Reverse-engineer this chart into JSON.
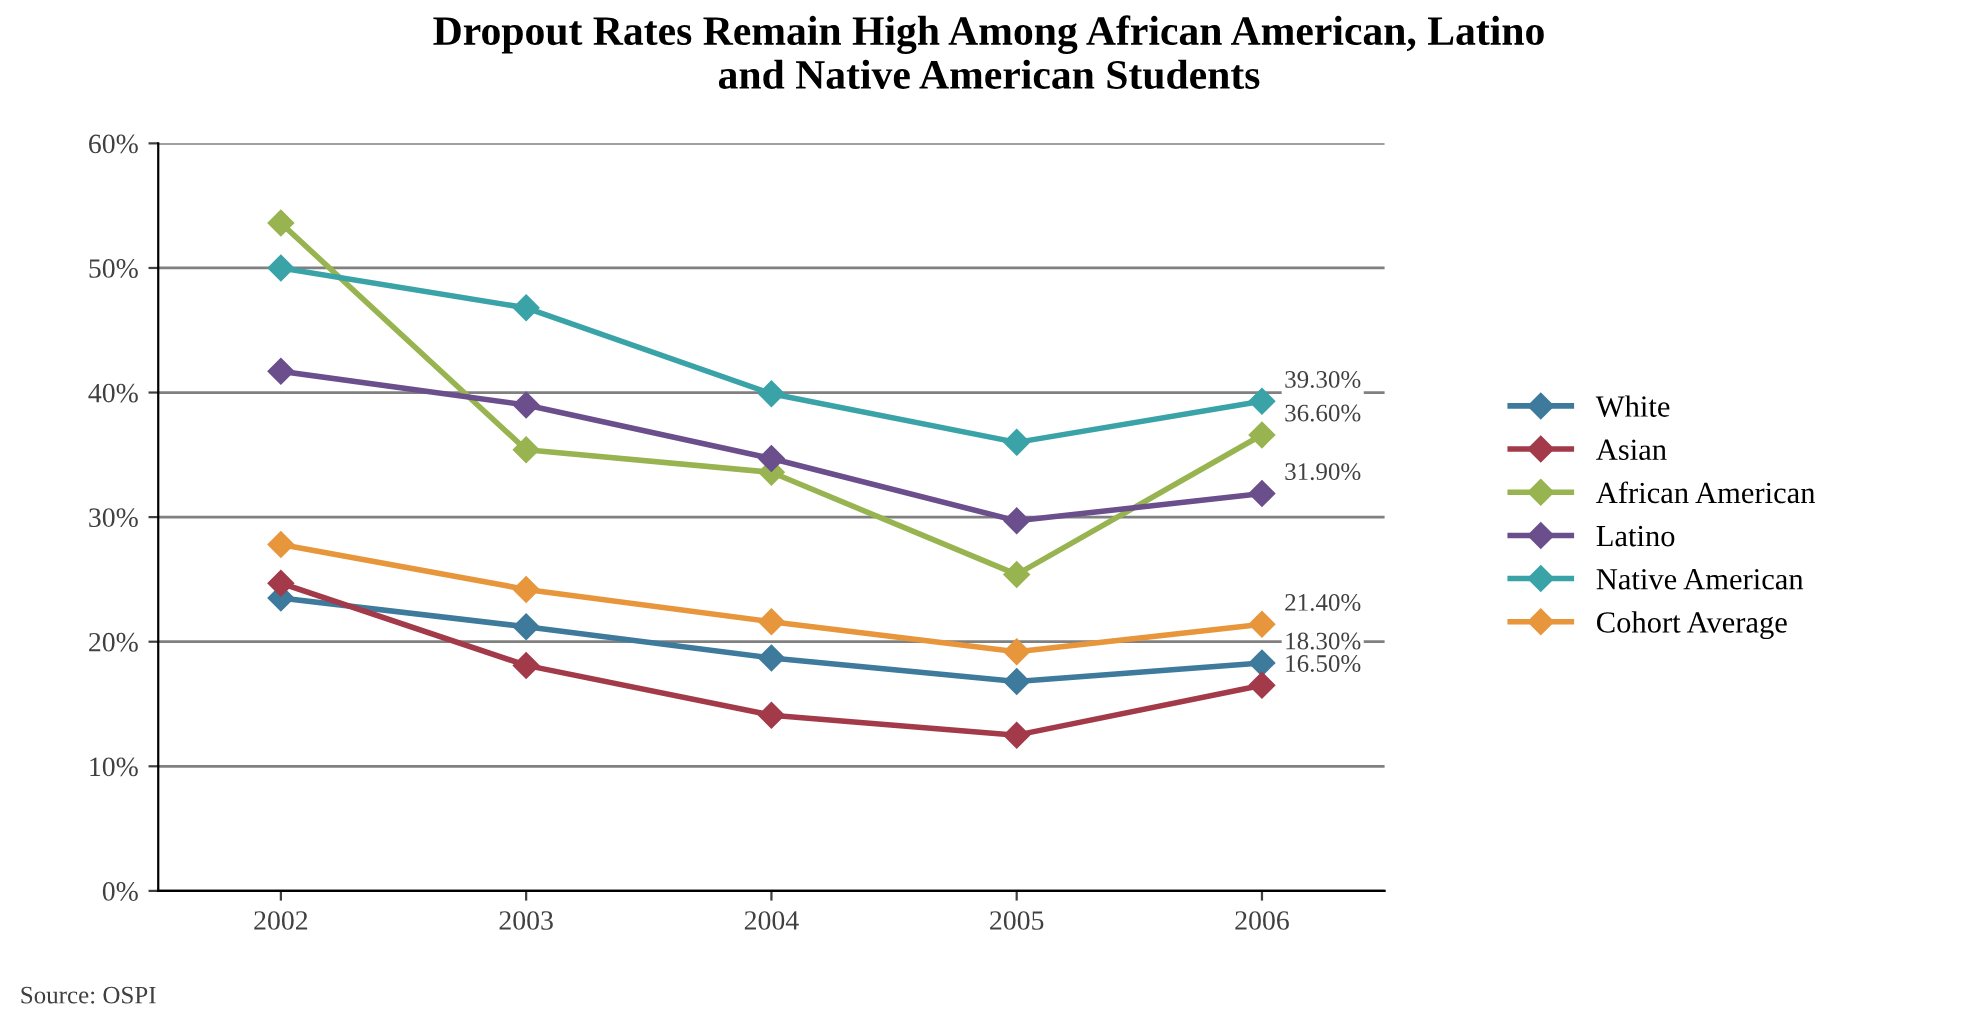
{
  "chart_data": {
    "type": "line",
    "title": "Dropout Rates Remain High Among African American, Latino\nand Native American Students",
    "categories": [
      "2002",
      "2003",
      "2004",
      "2005",
      "2006"
    ],
    "series": [
      {
        "name": "White",
        "color": "#3d7a9c",
        "values": [
          23.5,
          21.2,
          18.7,
          16.8,
          18.3
        ],
        "value_labels": [
          null,
          null,
          null,
          null,
          "18.30%"
        ]
      },
      {
        "name": "Asian",
        "color": "#a33a4a",
        "values": [
          24.7,
          18.1,
          14.1,
          12.5,
          16.5
        ],
        "value_labels": [
          null,
          null,
          null,
          null,
          "16.50%"
        ]
      },
      {
        "name": "African American",
        "color": "#98b450",
        "values": [
          53.6,
          35.4,
          33.6,
          25.4,
          36.6
        ],
        "value_labels": [
          null,
          null,
          null,
          null,
          "36.60%"
        ]
      },
      {
        "name": "Latino",
        "color": "#6a4f8c",
        "values": [
          41.7,
          39.0,
          34.7,
          29.7,
          31.9
        ],
        "value_labels": [
          null,
          null,
          null,
          null,
          "31.90%"
        ]
      },
      {
        "name": "Native American",
        "color": "#3aa3a8",
        "values": [
          50.0,
          46.8,
          39.9,
          36.0,
          39.3
        ],
        "value_labels": [
          null,
          null,
          null,
          null,
          "39.30%"
        ]
      },
      {
        "name": "Cohort Average",
        "color": "#e8963c",
        "values": [
          27.8,
          24.2,
          21.6,
          19.2,
          21.4
        ],
        "value_labels": [
          null,
          null,
          null,
          null,
          "21.40%"
        ]
      }
    ],
    "ylim": [
      0,
      60
    ],
    "yticks": [
      {
        "value": 0,
        "label": "0%"
      },
      {
        "value": 10,
        "label": "10%"
      },
      {
        "value": 20,
        "label": "20%"
      },
      {
        "value": 30,
        "label": "30%"
      },
      {
        "value": 40,
        "label": "40%"
      },
      {
        "value": 50,
        "label": "50%"
      },
      {
        "value": 60,
        "label": "60%"
      }
    ],
    "grid": "y",
    "legend": "right",
    "marker": "diamond",
    "line_style": "solid",
    "annotations": [
      "Source: OSPI"
    ]
  }
}
